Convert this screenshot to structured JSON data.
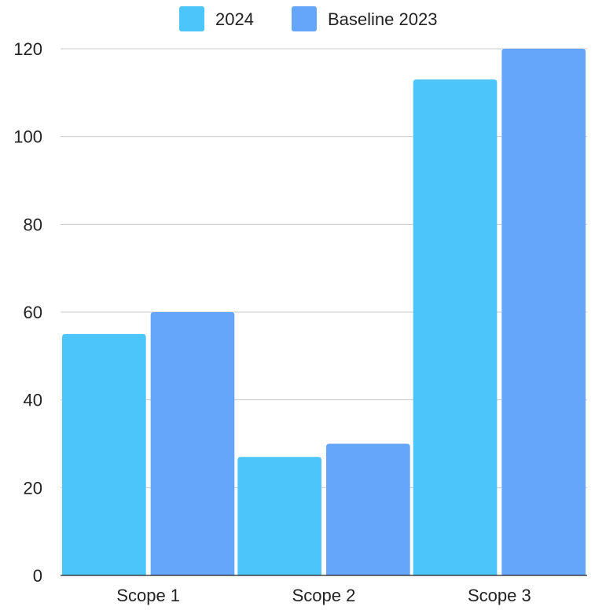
{
  "chart_data": {
    "type": "bar",
    "categories": [
      "Scope 1",
      "Scope 2",
      "Scope 3"
    ],
    "series": [
      {
        "name": "2024",
        "values": [
          55,
          27,
          113
        ],
        "color": "#4cc5fb"
      },
      {
        "name": "Baseline 2023",
        "values": [
          60,
          30,
          120
        ],
        "color": "#65a6fa"
      }
    ],
    "ylim": [
      0,
      120
    ],
    "yticks": [
      0,
      20,
      40,
      60,
      80,
      100,
      120
    ],
    "xlabel": "",
    "ylabel": "",
    "title": "",
    "grid": true,
    "legend_position": "top"
  }
}
